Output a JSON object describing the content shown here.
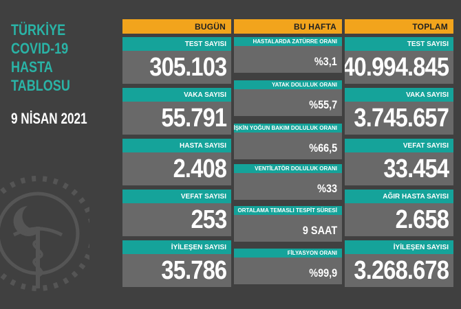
{
  "title_lines": [
    "TÜRKİYE",
    "COVID-19",
    "HASTA",
    "TABLOSU"
  ],
  "date": "9 NİSAN 2021",
  "colors": {
    "accent_header": "#f2a41c",
    "label_bg": "#15a39a",
    "value_bg": "#696969",
    "background": "#404040",
    "title": "#2ab3a6"
  },
  "today": {
    "header": "BUGÜN",
    "items": [
      {
        "label": "TEST SAYISI",
        "value": "305.103"
      },
      {
        "label": "VAKA SAYISI",
        "value": "55.791"
      },
      {
        "label": "HASTA SAYISI",
        "value": "2.408"
      },
      {
        "label": "VEFAT SAYISI",
        "value": "253"
      },
      {
        "label": "İYİLEŞEN SAYISI",
        "value": "35.786"
      }
    ]
  },
  "week": {
    "header": "BU HAFTA",
    "items": [
      {
        "label": "HASTALARDA ZATÜRRE ORANI",
        "value": "%3,1"
      },
      {
        "label": "YATAK DOLULUK ORANI",
        "value": "%55,7"
      },
      {
        "label": "ERİŞKİN YOĞUN BAKIM DOLULUK ORANI",
        "value": "%66,5"
      },
      {
        "label": "VENTİLATÖR DOLULUK ORANI",
        "value": "%33"
      },
      {
        "label": "ORTALAMA TEMASLI TESPİT SÜRESİ",
        "value": "9 SAAT"
      },
      {
        "label": "FİLYASYON ORANI",
        "value": "%99,9"
      }
    ]
  },
  "total": {
    "header": "TOPLAM",
    "items": [
      {
        "label": "TEST SAYISI",
        "value": "40.994.845"
      },
      {
        "label": "VAKA SAYISI",
        "value": "3.745.657"
      },
      {
        "label": "VEFAT SAYISI",
        "value": "33.454"
      },
      {
        "label": "AĞIR HASTA SAYISI",
        "value": "2.658"
      },
      {
        "label": "İYİLEŞEN SAYISI",
        "value": "3.268.678"
      }
    ]
  }
}
